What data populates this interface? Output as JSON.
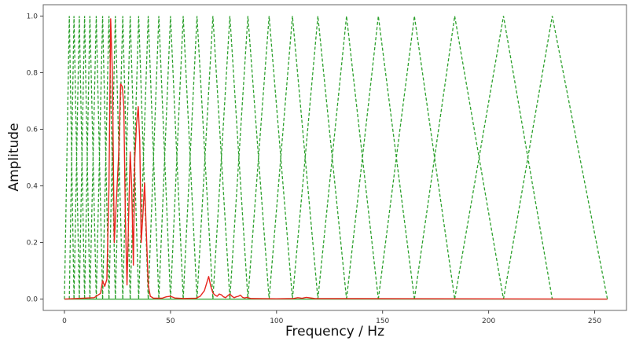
{
  "chart_data": {
    "type": "line",
    "title": "",
    "xlabel": "Frequency / Hz",
    "ylabel": "Amplitude",
    "xlim": [
      -10,
      265
    ],
    "ylim": [
      -0.04,
      1.04
    ],
    "xticks": [
      0,
      50,
      100,
      150,
      200,
      250
    ],
    "xtick_labels": [
      "0",
      "50",
      "100",
      "150",
      "200",
      "250"
    ],
    "yticks": [
      0.0,
      0.2,
      0.4,
      0.6,
      0.8,
      1.0
    ],
    "ytick_labels": [
      "0.0",
      "0.2",
      "0.4",
      "0.6",
      "0.8",
      "1.0"
    ],
    "grid": false,
    "legend": "none",
    "filterbank": {
      "style": "dashed",
      "color": "#2ca02c",
      "peak": 1.0,
      "edge_frequencies": [
        0,
        2.3,
        4.5,
        7,
        9.5,
        12,
        15,
        18,
        21,
        24,
        27.5,
        31,
        35,
        39.5,
        44.5,
        50,
        56,
        62.5,
        70,
        78,
        86.5,
        96.5,
        107.5,
        119.5,
        133,
        148,
        165,
        184,
        207,
        230,
        256
      ]
    },
    "series": [
      {
        "color": "#e8251e",
        "x": [
          0,
          14,
          17,
          18,
          19,
          20,
          21,
          21.8,
          22.6,
          23.5,
          24.5,
          25.5,
          26.5,
          27.3,
          28,
          28.7,
          29.5,
          30.3,
          31,
          31.7,
          32.5,
          33.2,
          34,
          34.8,
          35.5,
          36.2,
          37,
          37.8,
          38.6,
          39.5,
          40.5,
          42,
          46,
          48,
          50,
          52,
          56,
          62,
          64,
          66,
          67,
          68,
          69,
          70,
          71,
          72,
          73,
          74,
          75,
          76,
          77,
          78,
          79,
          80,
          81,
          82,
          83,
          84,
          85,
          86,
          88,
          100,
          108,
          110,
          112,
          114,
          118,
          256
        ],
        "y": [
          0,
          0.005,
          0.02,
          0.065,
          0.045,
          0.07,
          0.4,
          0.99,
          0.8,
          0.2,
          0.35,
          0.5,
          0.76,
          0.75,
          0.68,
          0.3,
          0.05,
          0.3,
          0.52,
          0.4,
          0.12,
          0.5,
          0.62,
          0.68,
          0.56,
          0.2,
          0.3,
          0.41,
          0.24,
          0.05,
          0.01,
          0.003,
          0.003,
          0.008,
          0.01,
          0.004,
          0.002,
          0.003,
          0.01,
          0.03,
          0.055,
          0.08,
          0.045,
          0.022,
          0.014,
          0.01,
          0.018,
          0.015,
          0.008,
          0.005,
          0.012,
          0.018,
          0.01,
          0.005,
          0.008,
          0.01,
          0.014,
          0.006,
          0.004,
          0.006,
          0.002,
          0.001,
          0.002,
          0.005,
          0.003,
          0.006,
          0.002,
          0
        ]
      }
    ]
  }
}
